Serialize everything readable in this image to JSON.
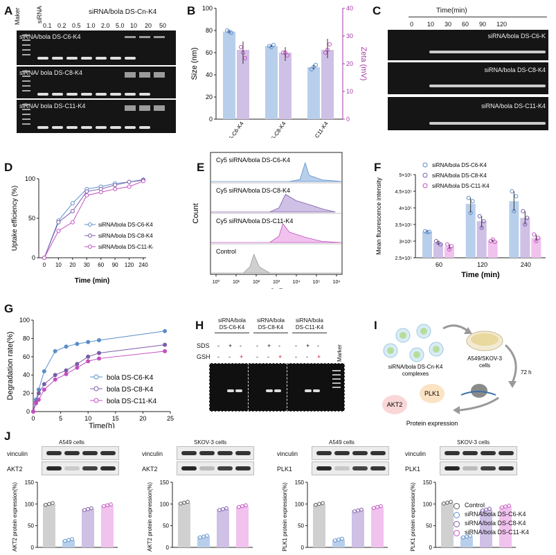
{
  "panels": {
    "A": {
      "label": "A",
      "maker": "Maker",
      "sirna": "siRNA",
      "header": "siRNA/bola DS-Cn-K4",
      "ratios": [
        "0.1",
        "0.2",
        "0.5",
        "1.0",
        "2.0",
        "5.0",
        "10",
        "20",
        "50"
      ],
      "gel_labels": [
        "siRNA/bola DS-C6-K4",
        "siRNA/ bola DS-C8-K4",
        "siRNA/ bola DS-C11-K4"
      ]
    },
    "B": {
      "label": "B",
      "ylabel_left": "Size (nm)",
      "ylabel_right": "Zeta (mV)",
      "left_ticks": [
        "0",
        "20",
        "40",
        "60",
        "80",
        "100"
      ],
      "right_ticks": [
        "0",
        "10",
        "20",
        "30",
        "40"
      ],
      "categories": [
        "siRNA/bola DS-C6-K4",
        "siRNA/bola DS-C8-K4",
        "siRNA/bola DS-C11-K4"
      ]
    },
    "C": {
      "label": "C",
      "title": "Time(min)",
      "times": [
        "0",
        "10",
        "30",
        "60",
        "90",
        "120"
      ],
      "gel_labels": [
        "siRNA/bola DS-C6-K",
        "siRNA/bola DS-C8-K4",
        "siRNA/bola DS-C11-K4"
      ]
    },
    "D": {
      "label": "D",
      "ylabel": "Uptake efficiency (%)",
      "xlabel": "Time (min)",
      "legend": [
        "siRNA/bola DS-C6-K4",
        "siRNA/bola DS-C8-K4",
        "siRNA/bola DS-C11-K4"
      ]
    },
    "E": {
      "label": "E",
      "ylabel": "Count",
      "xlabel": "Cy5",
      "rows": [
        "Cy5 siRNA/bola DS-C6-K4",
        "Cy5 siRNA/bola DS-C8-K4",
        "Cy5 siRNA/bola DS-C11-K4",
        "Control"
      ],
      "ticks": [
        "10⁰",
        "10¹",
        "10²",
        "10³",
        "10⁴",
        "10⁵",
        "10⁶"
      ]
    },
    "F": {
      "label": "F",
      "ylabel": "Mean fluorescence intensity",
      "xlabel": "Time (min)",
      "legend": [
        "siRNA/bola DS-C6-K4",
        "siRNA/bola DS-C8-K4",
        "siRNA/bola DS-C11-K4"
      ],
      "yticks": [
        "2.5×10⁵",
        "3×10⁵",
        "3.5×10⁵",
        "4×10⁵",
        "4.5×10⁵",
        "5×10⁵"
      ]
    },
    "G": {
      "label": "G",
      "ylabel": "Degradation rate(%)",
      "xlabel": "Time(h)",
      "legend": [
        "bola DS-C6-K4",
        "bola DS-C8-K4",
        "bola DS-C11-K4"
      ]
    },
    "H": {
      "label": "H",
      "groups": [
        "siRNA/bola DS-C6-K4",
        "siRNA/bola DS-C8-K4",
        "siRNA/bola DS-C11-K4"
      ],
      "sds": "SDS",
      "gsh": "GSH",
      "marker": "Marker",
      "sds_signs": [
        "-",
        "+",
        "-"
      ],
      "gsh_signs": [
        "-",
        "-",
        "+"
      ]
    },
    "I": {
      "label": "I",
      "complex": "siRNA/bola DS-Cn-K4 complexes",
      "cells": "A549/SKOV-3 cells",
      "time": "72 h",
      "akt2": "AKT2",
      "plk1": "PLK1",
      "expr": "Protein expression"
    },
    "J": {
      "label": "J",
      "blots": [
        {
          "cells": "A549 cells",
          "top": "vinculin",
          "bottom": "AKT2",
          "ylabel": "AKT2 protein expression(%)"
        },
        {
          "cells": "SKOV-3 cells",
          "top": "vinculin",
          "bottom": "AKT2",
          "ylabel": "AKT2 protein expression(%)"
        },
        {
          "cells": "A549 cells",
          "top": "vinculin",
          "bottom": "PLK1",
          "ylabel": "PLK1 protein expression(%)"
        },
        {
          "cells": "SKOV-3 cells",
          "top": "vinculin",
          "bottom": "PLK1",
          "ylabel": "PLK1 protein expression(%)"
        }
      ],
      "legend": [
        "Control",
        "siRNA/bola DS-C6-K4",
        "siRNA/bola DS-C8-K4",
        "siRNA/bola DS-C11-K4"
      ]
    }
  },
  "colors": {
    "c6": "#5b8ec9",
    "c8": "#7b5aa8",
    "c11": "#c34fc0",
    "c6fill": "#b8cfec",
    "c8fill": "#cfc0e6",
    "c11fill": "#f1c2ee",
    "control": "#d0d0d0",
    "right_axis": "#a23aa8"
  },
  "chart_data": [
    {
      "id": "B",
      "type": "bar",
      "categories": [
        "siRNA/bola DS-C6-K4",
        "siRNA/bola DS-C8-K4",
        "siRNA/bola DS-C11-K4"
      ],
      "series": [
        {
          "name": "Size (nm)",
          "axis": "left",
          "values": [
            79,
            66,
            47
          ],
          "points": [
            [
              80,
              79,
              78
            ],
            [
              66,
              65,
              67
            ],
            [
              45,
              47,
              49
            ]
          ]
        },
        {
          "name": "Zeta (mV)",
          "axis": "right",
          "values": [
            25,
            24,
            25
          ],
          "points": [
            [
              26,
              24,
              22
            ],
            [
              24,
              24,
              23
            ],
            [
              24,
              25,
              27
            ]
          ]
        }
      ],
      "ylim_left": [
        0,
        100
      ],
      "ylim_right": [
        0,
        40
      ]
    },
    {
      "id": "D",
      "type": "line",
      "x": [
        "0",
        "10",
        "20",
        "30",
        "60",
        "90",
        "120",
        "240"
      ],
      "series": [
        {
          "name": "siRNA/bola DS-C6-K4",
          "values": [
            0,
            47,
            69,
            87,
            90,
            94,
            96,
            99
          ]
        },
        {
          "name": "siRNA/bola DS-C8-K4",
          "values": [
            0,
            45,
            59,
            84,
            87,
            92,
            96,
            98
          ]
        },
        {
          "name": "siRNA/bola DS-C11-K4",
          "values": [
            0,
            34,
            45,
            79,
            83,
            87,
            90,
            97
          ]
        }
      ],
      "ylim": [
        0,
        100
      ]
    },
    {
      "id": "F",
      "type": "bar",
      "categories": [
        "60",
        "120",
        "240"
      ],
      "series": [
        {
          "name": "siRNA/bola DS-C6-K4",
          "values": [
            3.28,
            4.12,
            4.2
          ],
          "points": [
            [
              3.3,
              3.27,
              3.28
            ],
            [
              4.3,
              3.85,
              4.2
            ],
            [
              4.5,
              3.9,
              4.35
            ]
          ]
        },
        {
          "name": "siRNA/bola DS-C8-K4",
          "values": [
            2.95,
            3.6,
            3.7
          ],
          "points": [
            [
              3.0,
              2.95,
              2.9
            ],
            [
              3.75,
              3.4,
              3.6
            ],
            [
              3.9,
              3.5,
              3.7
            ]
          ]
        },
        {
          "name": "siRNA/bola DS-C11-K4",
          "values": [
            2.83,
            3.0,
            3.1
          ],
          "points": [
            [
              2.9,
              2.75,
              2.85
            ],
            [
              3.0,
              3.05,
              2.98
            ],
            [
              3.2,
              3.0,
              3.1
            ]
          ]
        }
      ],
      "ylim": [
        2.5,
        5.0
      ],
      "yunit": "×10⁵"
    },
    {
      "id": "G",
      "type": "line",
      "x": [
        0,
        0.5,
        1,
        2,
        4,
        6,
        8,
        10,
        12,
        24
      ],
      "series": [
        {
          "name": "bola DS-C6-K4",
          "values": [
            0,
            13,
            24,
            44,
            66,
            71,
            74,
            76,
            78,
            88
          ]
        },
        {
          "name": "bola DS-C8-K4",
          "values": [
            0,
            10,
            20,
            30,
            40,
            45,
            52,
            60,
            64,
            73
          ]
        },
        {
          "name": "bola DS-C11-K4",
          "values": [
            0,
            9,
            13,
            24,
            35,
            41,
            48,
            55,
            58,
            66
          ]
        }
      ],
      "xlim": [
        0,
        25
      ],
      "ylim": [
        0,
        100
      ]
    },
    {
      "id": "J",
      "type": "bar",
      "panels": [
        {
          "values": [
            100,
            17,
            88,
            97
          ]
        },
        {
          "values": [
            103,
            25,
            88,
            95
          ]
        },
        {
          "values": [
            100,
            18,
            85,
            93
          ]
        },
        {
          "values": [
            103,
            25,
            87,
            94
          ]
        }
      ],
      "series_names": [
        "Control",
        "siRNA/bola DS-C6-K4",
        "siRNA/bola DS-C8-K4",
        "siRNA/bola DS-C11-K4"
      ],
      "ylim": [
        0,
        150
      ]
    }
  ]
}
